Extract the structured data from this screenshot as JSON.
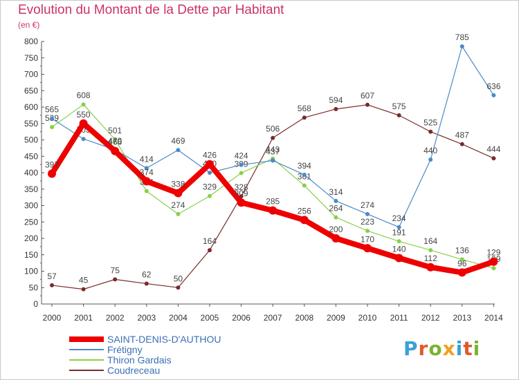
{
  "title": "Evolution du Montant de la Dette par Habitant",
  "unit": "(en €)",
  "brand": {
    "letters": [
      "P",
      "r",
      "o",
      "x",
      "i",
      "t",
      "i"
    ],
    "colors": [
      "#3aa0d8",
      "#e05a2a",
      "#7ab32e",
      "#f0a020",
      "#3aa0d8",
      "#e05a2a",
      "#7ab32e"
    ]
  },
  "chart_data": {
    "type": "line",
    "title": "Evolution du Montant de la Dette par Habitant",
    "ylabel": "(en €)",
    "xlabel": "",
    "ylim": [
      0,
      800
    ],
    "yticks": [
      "0",
      "50",
      "100",
      "150",
      "200",
      "250",
      "300",
      "350",
      "400",
      "450",
      "500",
      "550",
      "600",
      "650",
      "700",
      "750",
      "800"
    ],
    "categories": [
      "2000",
      "2001",
      "2002",
      "2003",
      "2004",
      "2005",
      "2006",
      "2007",
      "2008",
      "2009",
      "2010",
      "2011",
      "2012",
      "2013",
      "2014"
    ],
    "series": [
      {
        "name": "Coudreceau",
        "color": "#7a2a2a",
        "width": 1.2,
        "values": [
          57,
          45,
          75,
          62,
          50,
          164,
          328,
          506,
          568,
          594,
          607,
          575,
          525,
          487,
          444
        ],
        "labels": [
          "57",
          "45",
          "75",
          "62",
          "50",
          "164",
          "328",
          "506",
          "568",
          "594",
          "607",
          "575",
          "525",
          "487",
          "444"
        ]
      },
      {
        "name": "Thiron Gardais",
        "color": "#88d048",
        "width": 1.2,
        "values": [
          539,
          608,
          501,
          344,
          274,
          329,
          399,
          443,
          361,
          264,
          223,
          191,
          164,
          136,
          109
        ],
        "labels": [
          "539",
          "608",
          "501",
          "344",
          "274",
          "329",
          "399",
          "443",
          "361",
          "264",
          "223",
          "191",
          "164",
          "136",
          "109"
        ]
      },
      {
        "name": "Frétigny",
        "color": "#4a8ac8",
        "width": 1.2,
        "values": [
          565,
          503,
          470,
          414,
          469,
          400,
          424,
          437,
          394,
          314,
          274,
          234,
          440,
          785,
          636
        ],
        "labels": [
          "565",
          "503",
          "470",
          "414",
          "469",
          "400",
          "424",
          "437",
          "394",
          "314",
          "274",
          "234",
          "440",
          "785",
          "636"
        ]
      },
      {
        "name": "SAINT-DENIS-D'AUTHOU",
        "color": "#ee0000",
        "width": 8,
        "values": [
          397,
          550,
          466,
          374,
          338,
          426,
          309,
          285,
          256,
          200,
          170,
          140,
          112,
          96,
          129
        ],
        "labels": [
          "397",
          "550",
          "466",
          "374",
          "338",
          "426",
          "309",
          "285",
          "256",
          "200",
          "170",
          "140",
          "112",
          "96",
          "129"
        ]
      }
    ],
    "legend": [
      "SAINT-DENIS-D'AUTHOU",
      "Frétigny",
      "Thiron Gardais",
      "Coudreceau"
    ],
    "grid": false,
    "legend_position": "bottom-left"
  }
}
